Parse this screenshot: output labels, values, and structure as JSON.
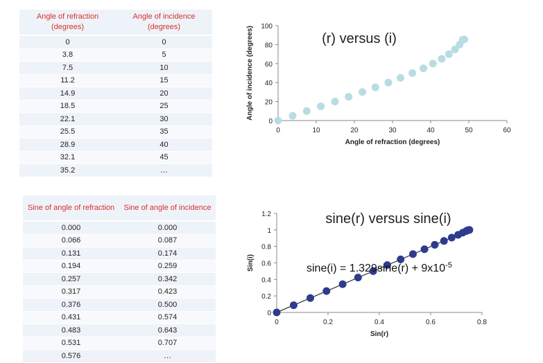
{
  "table1": {
    "headers": [
      "Angle of refraction (degrees)",
      "Angle of incidence (degrees)"
    ],
    "rows": [
      [
        "0",
        "0"
      ],
      [
        "3.8",
        "5"
      ],
      [
        "7.5",
        "10"
      ],
      [
        "11.2",
        "15"
      ],
      [
        "14.9",
        "20"
      ],
      [
        "18.5",
        "25"
      ],
      [
        "22.1",
        "30"
      ],
      [
        "25.5",
        "35"
      ],
      [
        "28.9",
        "40"
      ],
      [
        "32.1",
        "45"
      ],
      [
        "35.2",
        "…"
      ]
    ]
  },
  "table2": {
    "headers": [
      "Sine of angle of refraction",
      "Sine of angle of incidence"
    ],
    "rows": [
      [
        "0.000",
        "0.000"
      ],
      [
        "0.066",
        "0.087"
      ],
      [
        "0.131",
        "0.174"
      ],
      [
        "0.194",
        "0.259"
      ],
      [
        "0.257",
        "0.342"
      ],
      [
        "0.317",
        "0.423"
      ],
      [
        "0.376",
        "0.500"
      ],
      [
        "0.431",
        "0.574"
      ],
      [
        "0.483",
        "0.643"
      ],
      [
        "0.531",
        "0.707"
      ],
      [
        "0.576",
        "…"
      ]
    ]
  },
  "chart_data": [
    {
      "type": "scatter",
      "title": "(r) versus (i)",
      "xlabel": "Angle of refraction (degrees)",
      "ylabel": "Angle of incidence (degrees)",
      "xlim": [
        0,
        60
      ],
      "ylim": [
        0,
        100
      ],
      "xticks": [
        0,
        10,
        20,
        30,
        40,
        50,
        60
      ],
      "yticks": [
        0,
        20,
        40,
        60,
        80,
        100
      ],
      "marker_color": "#b7dde3",
      "x": [
        0,
        3.8,
        7.5,
        11.2,
        14.9,
        18.5,
        22.1,
        25.5,
        28.9,
        32.1,
        35.2,
        38.1,
        40.6,
        42.9,
        44.8,
        46.4,
        47.6,
        48.4,
        48.8
      ],
      "y": [
        0,
        5,
        10,
        15,
        20,
        25,
        30,
        35,
        40,
        45,
        50,
        55,
        60,
        65,
        70,
        75,
        80,
        85,
        85.5
      ]
    },
    {
      "type": "scatter",
      "title": "sine(r) versus sine(i)",
      "xlabel": "Sin(r)",
      "ylabel": "Sin(i)",
      "xlim": [
        0,
        0.8
      ],
      "ylim": [
        0,
        1.2
      ],
      "xticks": [
        0,
        0.2,
        0.4,
        0.6,
        0.8
      ],
      "yticks": [
        0,
        0.2,
        0.4,
        0.6,
        0.8,
        1,
        1.2
      ],
      "ytick_labels": [
        "0",
        "0.2",
        "0.4",
        "0.6",
        "0.8",
        "1",
        "1.2"
      ],
      "marker_color": "#2e3b8f",
      "trendline": {
        "slope": 1.329,
        "intercept": 9e-05,
        "x_range": [
          0,
          0.752
        ]
      },
      "equation_text": "sine(i) = 1.329sine(r) + 9x10",
      "equation_exponent": "-5",
      "x": [
        0,
        0.066,
        0.131,
        0.194,
        0.257,
        0.317,
        0.376,
        0.431,
        0.483,
        0.531,
        0.576,
        0.616,
        0.652,
        0.682,
        0.707,
        0.725,
        0.738,
        0.745,
        0.751
      ],
      "y": [
        0,
        0.087,
        0.174,
        0.259,
        0.342,
        0.423,
        0.5,
        0.574,
        0.643,
        0.707,
        0.766,
        0.819,
        0.866,
        0.906,
        0.94,
        0.966,
        0.985,
        0.996,
        1.0
      ]
    }
  ]
}
